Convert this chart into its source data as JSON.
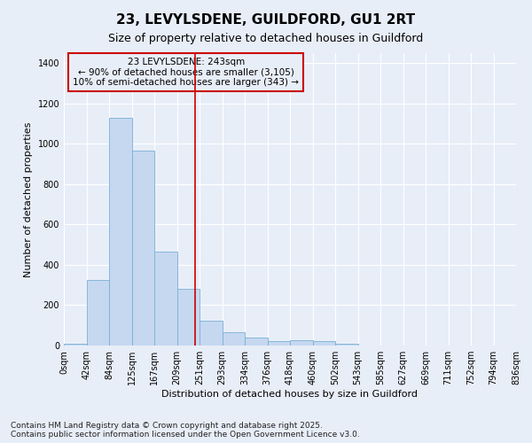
{
  "title": "23, LEVYLSDENE, GUILDFORD, GU1 2RT",
  "subtitle": "Size of property relative to detached houses in Guildford",
  "xlabel": "Distribution of detached houses by size in Guildford",
  "ylabel": "Number of detached properties",
  "footer": "Contains HM Land Registry data © Crown copyright and database right 2025.\nContains public sector information licensed under the Open Government Licence v3.0.",
  "bin_labels": [
    "0sqm",
    "42sqm",
    "84sqm",
    "125sqm",
    "167sqm",
    "209sqm",
    "251sqm",
    "293sqm",
    "334sqm",
    "376sqm",
    "418sqm",
    "460sqm",
    "502sqm",
    "543sqm",
    "585sqm",
    "627sqm",
    "669sqm",
    "711sqm",
    "752sqm",
    "794sqm",
    "836sqm"
  ],
  "bar_values": [
    10,
    325,
    1130,
    965,
    465,
    280,
    125,
    68,
    40,
    22,
    25,
    20,
    8,
    0,
    0,
    0,
    0,
    0,
    0,
    0
  ],
  "bar_color": "#c5d8f0",
  "bar_edge_color": "#7aafd4",
  "vline_color": "#cc0000",
  "annotation_title": "23 LEVYLSDENE: 243sqm",
  "annotation_line1": "← 90% of detached houses are smaller (3,105)",
  "annotation_line2": "10% of semi-detached houses are larger (343) →",
  "annotation_box_color": "#cc0000",
  "ylim": [
    0,
    1450
  ],
  "yticks": [
    0,
    200,
    400,
    600,
    800,
    1000,
    1200,
    1400
  ],
  "background_color": "#e8eef8",
  "grid_color": "#ffffff",
  "title_fontsize": 11,
  "subtitle_fontsize": 9,
  "axis_label_fontsize": 8,
  "tick_fontsize": 7,
  "annotation_fontsize": 7.5,
  "footer_fontsize": 6.5
}
